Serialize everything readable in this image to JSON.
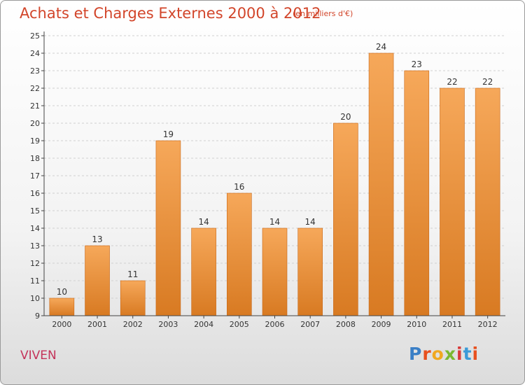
{
  "header": {
    "title": "Achats et Charges Externes 2000 à 2012",
    "subtitle": "(en milliers d'€)"
  },
  "footer": {
    "commune": "VIVEN",
    "logo": {
      "text": "Proxiti",
      "letter_colors": [
        "#3a7fc6",
        "#e8501e",
        "#f0a820",
        "#7ab830",
        "#d83a3a",
        "#3a9ad8",
        "#e8501e"
      ]
    }
  },
  "colors": {
    "bar_light": "#f6a85a",
    "bar_dark": "#d87a22",
    "bar_edge": "#c86818",
    "axis": "#444444",
    "grid": "#d0d0d0",
    "text": "#333333"
  },
  "chart_data": {
    "type": "bar",
    "title": "Achats et Charges Externes 2000 à 2012",
    "subtitle": "(en milliers d'€)",
    "categories": [
      "2000",
      "2001",
      "2002",
      "2003",
      "2004",
      "2005",
      "2006",
      "2007",
      "2008",
      "2009",
      "2010",
      "2011",
      "2012"
    ],
    "values": [
      10,
      13,
      11,
      19,
      14,
      16,
      14,
      14,
      20,
      24,
      23,
      22,
      22
    ],
    "ylim": [
      9,
      25
    ],
    "yticks": [
      9,
      10,
      11,
      12,
      13,
      14,
      15,
      16,
      17,
      18,
      19,
      20,
      21,
      22,
      23,
      24,
      25
    ],
    "grid": "horizontal dashed",
    "data_labels": true
  }
}
